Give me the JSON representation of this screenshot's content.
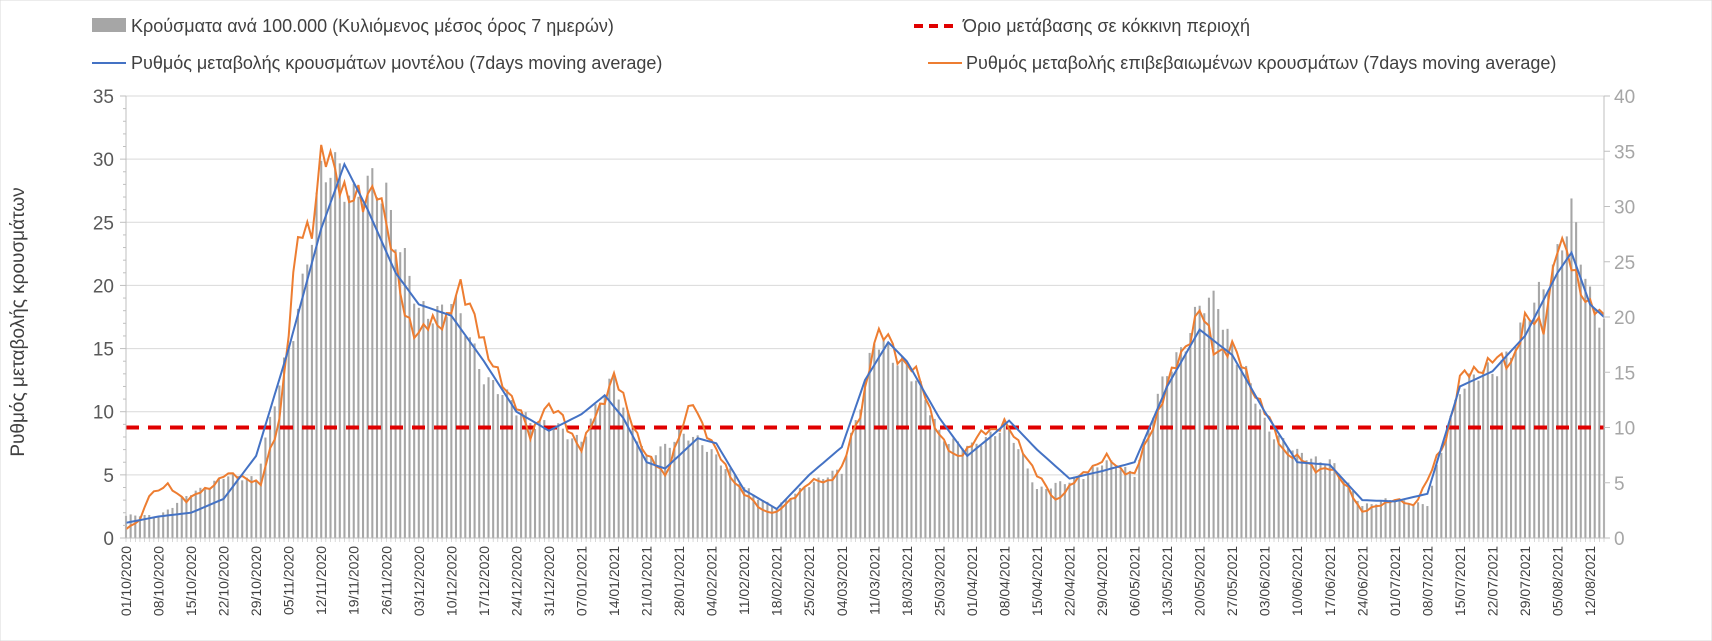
{
  "chart_data": {
    "type": "bar+line",
    "title": "",
    "ylabel": "Ρυθμός μεταβολής κρουσμάτων",
    "ylabel_right": "",
    "ylim": [
      0,
      35
    ],
    "ylim_right": [
      0,
      40
    ],
    "yticks": [
      0,
      5,
      10,
      15,
      20,
      25,
      30,
      35
    ],
    "yticks_right": [
      0,
      5,
      10,
      15,
      20,
      25,
      30,
      35,
      40
    ],
    "x_start": "01/10/2020",
    "x_tick_labels": [
      "01/10/2020",
      "08/10/2020",
      "15/10/2020",
      "22/10/2020",
      "29/10/2020",
      "05/11/2020",
      "12/11/2020",
      "19/11/2020",
      "26/11/2020",
      "03/12/2020",
      "10/12/2020",
      "17/12/2020",
      "24/12/2020",
      "31/12/2020",
      "07/01/2021",
      "14/01/2021",
      "21/01/2021",
      "28/01/2021",
      "04/02/2021",
      "11/02/2021",
      "18/02/2021",
      "25/02/2021",
      "04/03/2021",
      "11/03/2021",
      "18/03/2021",
      "25/03/2021",
      "01/04/2021",
      "08/04/2021",
      "15/04/2021",
      "22/04/2021",
      "29/04/2021",
      "06/05/2021",
      "13/05/2021",
      "20/05/2021",
      "27/05/2021",
      "03/06/2021",
      "10/06/2021",
      "17/06/2021",
      "24/06/2021",
      "01/07/2021",
      "08/07/2021",
      "15/07/2021",
      "22/07/2021",
      "29/07/2021",
      "05/08/2021",
      "12/08/2021"
    ],
    "x_end": "15/08/2021",
    "legend": {
      "placement": "top",
      "bars": "Κρούσματα ανά 100.000 (Κυλιόμενος μέσος όρος 7 ημερών)",
      "threshold": "Όριο μετάβασης σε κόκκινη περιοχή",
      "model": "Ρυθμός μεταβολής κρουσμάτων μοντέλου (7days moving average)",
      "confirmed": "Ρυθμός μεταβολής επιβεβαιωμένων κρουσμάτων (7days moving average)"
    },
    "colors": {
      "bars": "#a6a6a6",
      "threshold": "#e00000",
      "model": "#4472c4",
      "confirmed": "#ed7d31",
      "grid": "#d9d9d9"
    },
    "threshold_right_axis": 10,
    "series_model_keypoints": [
      [
        "01/10/2020",
        1.2
      ],
      [
        "08/10/2020",
        1.7
      ],
      [
        "15/10/2020",
        2.0
      ],
      [
        "22/10/2020",
        3.1
      ],
      [
        "29/10/2020",
        6.5
      ],
      [
        "05/11/2020",
        15.0
      ],
      [
        "12/11/2020",
        24.5
      ],
      [
        "17/11/2020",
        29.6
      ],
      [
        "22/11/2020",
        26.0
      ],
      [
        "28/11/2020",
        21.0
      ],
      [
        "03/12/2020",
        18.5
      ],
      [
        "10/12/2020",
        17.6
      ],
      [
        "17/12/2020",
        14.0
      ],
      [
        "24/12/2020",
        10.0
      ],
      [
        "31/12/2020",
        8.5
      ],
      [
        "07/01/2021",
        9.8
      ],
      [
        "12/01/2021",
        11.3
      ],
      [
        "16/01/2021",
        9.5
      ],
      [
        "21/01/2021",
        6.0
      ],
      [
        "25/01/2021",
        5.5
      ],
      [
        "01/02/2021",
        7.9
      ],
      [
        "05/02/2021",
        7.5
      ],
      [
        "11/02/2021",
        3.8
      ],
      [
        "18/02/2021",
        2.3
      ],
      [
        "25/02/2021",
        5.0
      ],
      [
        "04/03/2021",
        7.2
      ],
      [
        "09/03/2021",
        12.5
      ],
      [
        "14/03/2021",
        15.5
      ],
      [
        "18/03/2021",
        14.0
      ],
      [
        "25/03/2021",
        9.5
      ],
      [
        "31/03/2021",
        6.5
      ],
      [
        "05/04/2021",
        8.0
      ],
      [
        "09/04/2021",
        9.3
      ],
      [
        "15/04/2021",
        7.0
      ],
      [
        "22/04/2021",
        4.7
      ],
      [
        "29/04/2021",
        5.3
      ],
      [
        "06/05/2021",
        6.0
      ],
      [
        "13/05/2021",
        12.0
      ],
      [
        "20/05/2021",
        16.5
      ],
      [
        "27/05/2021",
        14.5
      ],
      [
        "03/06/2021",
        10.0
      ],
      [
        "10/06/2021",
        6.0
      ],
      [
        "17/06/2021",
        5.8
      ],
      [
        "24/06/2021",
        3.0
      ],
      [
        "01/07/2021",
        2.9
      ],
      [
        "08/07/2021",
        3.5
      ],
      [
        "15/07/2021",
        12.0
      ],
      [
        "22/07/2021",
        13.2
      ],
      [
        "29/07/2021",
        16.0
      ],
      [
        "05/08/2021",
        21.0
      ],
      [
        "08/08/2021",
        22.6
      ],
      [
        "12/08/2021",
        18.5
      ],
      [
        "15/08/2021",
        17.5
      ]
    ],
    "series_confirmed_keypoints": [
      [
        "01/10/2020",
        0.7
      ],
      [
        "04/10/2020",
        1.4
      ],
      [
        "06/10/2020",
        3.5
      ],
      [
        "10/10/2020",
        4.1
      ],
      [
        "14/10/2020",
        3.0
      ],
      [
        "19/10/2020",
        4.0
      ],
      [
        "22/10/2020",
        5.0
      ],
      [
        "27/10/2020",
        4.8
      ],
      [
        "30/10/2020",
        4.2
      ],
      [
        "03/11/2020",
        9.5
      ],
      [
        "07/11/2020",
        23.5
      ],
      [
        "10/11/2020",
        25.0
      ],
      [
        "12/11/2020",
        30.3
      ],
      [
        "15/11/2020",
        28.8
      ],
      [
        "18/11/2020",
        27.5
      ],
      [
        "21/11/2020",
        26.0
      ],
      [
        "24/11/2020",
        28.5
      ],
      [
        "27/11/2020",
        23.0
      ],
      [
        "30/11/2020",
        18.0
      ],
      [
        "03/12/2020",
        16.0
      ],
      [
        "06/12/2020",
        17.0
      ],
      [
        "09/12/2020",
        17.5
      ],
      [
        "12/12/2020",
        19.5
      ],
      [
        "15/12/2020",
        18.0
      ],
      [
        "18/12/2020",
        14.0
      ],
      [
        "21/12/2020",
        12.5
      ],
      [
        "24/12/2020",
        10.5
      ],
      [
        "27/12/2020",
        8.0
      ],
      [
        "30/12/2020",
        10.5
      ],
      [
        "03/01/2021",
        9.5
      ],
      [
        "07/01/2021",
        7.0
      ],
      [
        "11/01/2021",
        10.5
      ],
      [
        "14/01/2021",
        12.8
      ],
      [
        "17/01/2021",
        10.0
      ],
      [
        "21/01/2021",
        6.5
      ],
      [
        "25/01/2021",
        5.0
      ],
      [
        "29/01/2021",
        9.0
      ],
      [
        "31/01/2021",
        10.8
      ],
      [
        "04/02/2021",
        7.5
      ],
      [
        "08/02/2021",
        5.0
      ],
      [
        "11/02/2021",
        3.5
      ],
      [
        "15/02/2021",
        2.2
      ],
      [
        "18/02/2021",
        2.0
      ],
      [
        "21/02/2021",
        3.0
      ],
      [
        "25/02/2021",
        4.4
      ],
      [
        "01/03/2021",
        4.5
      ],
      [
        "04/03/2021",
        5.5
      ],
      [
        "08/03/2021",
        10.0
      ],
      [
        "11/03/2021",
        15.5
      ],
      [
        "14/03/2021",
        16.0
      ],
      [
        "17/03/2021",
        14.0
      ],
      [
        "21/03/2021",
        12.5
      ],
      [
        "25/03/2021",
        8.0
      ],
      [
        "28/03/2021",
        6.5
      ],
      [
        "31/03/2021",
        7.0
      ],
      [
        "04/04/2021",
        8.5
      ],
      [
        "08/04/2021",
        9.0
      ],
      [
        "12/04/2021",
        7.0
      ],
      [
        "15/04/2021",
        5.0
      ],
      [
        "19/04/2021",
        3.0
      ],
      [
        "22/04/2021",
        4.0
      ],
      [
        "26/04/2021",
        5.5
      ],
      [
        "30/04/2021",
        6.3
      ],
      [
        "03/05/2021",
        5.5
      ],
      [
        "06/05/2021",
        5.0
      ],
      [
        "10/05/2021",
        9.0
      ],
      [
        "13/05/2021",
        12.0
      ],
      [
        "16/05/2021",
        14.5
      ],
      [
        "20/05/2021",
        18.0
      ],
      [
        "23/05/2021",
        15.0
      ],
      [
        "27/05/2021",
        15.0
      ],
      [
        "30/05/2021",
        13.0
      ],
      [
        "03/06/2021",
        10.0
      ],
      [
        "07/06/2021",
        7.0
      ],
      [
        "10/06/2021",
        6.3
      ],
      [
        "14/06/2021",
        5.5
      ],
      [
        "17/06/2021",
        5.5
      ],
      [
        "21/06/2021",
        4.0
      ],
      [
        "24/06/2021",
        2.0
      ],
      [
        "28/06/2021",
        2.7
      ],
      [
        "01/07/2021",
        3.0
      ],
      [
        "05/07/2021",
        2.6
      ],
      [
        "08/07/2021",
        4.5
      ],
      [
        "12/07/2021",
        8.0
      ],
      [
        "15/07/2021",
        12.5
      ],
      [
        "19/07/2021",
        13.5
      ],
      [
        "22/07/2021",
        14.0
      ],
      [
        "26/07/2021",
        14.0
      ],
      [
        "29/07/2021",
        17.0
      ],
      [
        "02/08/2021",
        17.0
      ],
      [
        "05/08/2021",
        23.0
      ],
      [
        "08/08/2021",
        22.0
      ],
      [
        "12/08/2021",
        18.0
      ],
      [
        "15/08/2021",
        17.5
      ]
    ],
    "series_bars_keypoints_right_axis": [
      [
        "01/10/2020",
        2.0
      ],
      [
        "08/10/2020",
        2.0
      ],
      [
        "15/10/2020",
        4.0
      ],
      [
        "22/10/2020",
        5.5
      ],
      [
        "29/10/2020",
        5.5
      ],
      [
        "05/11/2020",
        17.0
      ],
      [
        "12/11/2020",
        32.0
      ],
      [
        "16/11/2020",
        34.0
      ],
      [
        "19/11/2020",
        31.0
      ],
      [
        "26/11/2020",
        31.5
      ],
      [
        "03/12/2020",
        20.0
      ],
      [
        "10/12/2020",
        21.5
      ],
      [
        "17/12/2020",
        15.0
      ],
      [
        "24/12/2020",
        11.5
      ],
      [
        "31/12/2020",
        10.0
      ],
      [
        "07/01/2021",
        9.0
      ],
      [
        "14/01/2021",
        14.5
      ],
      [
        "21/01/2021",
        7.0
      ],
      [
        "28/01/2021",
        9.5
      ],
      [
        "04/02/2021",
        8.0
      ],
      [
        "11/02/2021",
        4.5
      ],
      [
        "18/02/2021",
        2.7
      ],
      [
        "25/02/2021",
        5.0
      ],
      [
        "04/03/2021",
        6.0
      ],
      [
        "11/03/2021",
        17.5
      ],
      [
        "18/03/2021",
        16.0
      ],
      [
        "25/03/2021",
        9.5
      ],
      [
        "01/04/2021",
        8.0
      ],
      [
        "08/04/2021",
        10.5
      ],
      [
        "15/04/2021",
        4.5
      ],
      [
        "22/04/2021",
        5.0
      ],
      [
        "29/04/2021",
        6.8
      ],
      [
        "06/05/2021",
        6.0
      ],
      [
        "13/05/2021",
        15.0
      ],
      [
        "20/05/2021",
        20.5
      ],
      [
        "24/05/2021",
        21.5
      ],
      [
        "27/05/2021",
        17.5
      ],
      [
        "03/06/2021",
        10.5
      ],
      [
        "10/06/2021",
        7.5
      ],
      [
        "17/06/2021",
        7.0
      ],
      [
        "24/06/2021",
        3.0
      ],
      [
        "01/07/2021",
        3.5
      ],
      [
        "08/07/2021",
        3.0
      ],
      [
        "15/07/2021",
        14.0
      ],
      [
        "22/07/2021",
        15.0
      ],
      [
        "29/07/2021",
        19.0
      ],
      [
        "05/08/2021",
        26.0
      ],
      [
        "08/08/2021",
        28.8
      ],
      [
        "12/08/2021",
        22.0
      ],
      [
        "15/08/2021",
        20.0
      ]
    ]
  }
}
